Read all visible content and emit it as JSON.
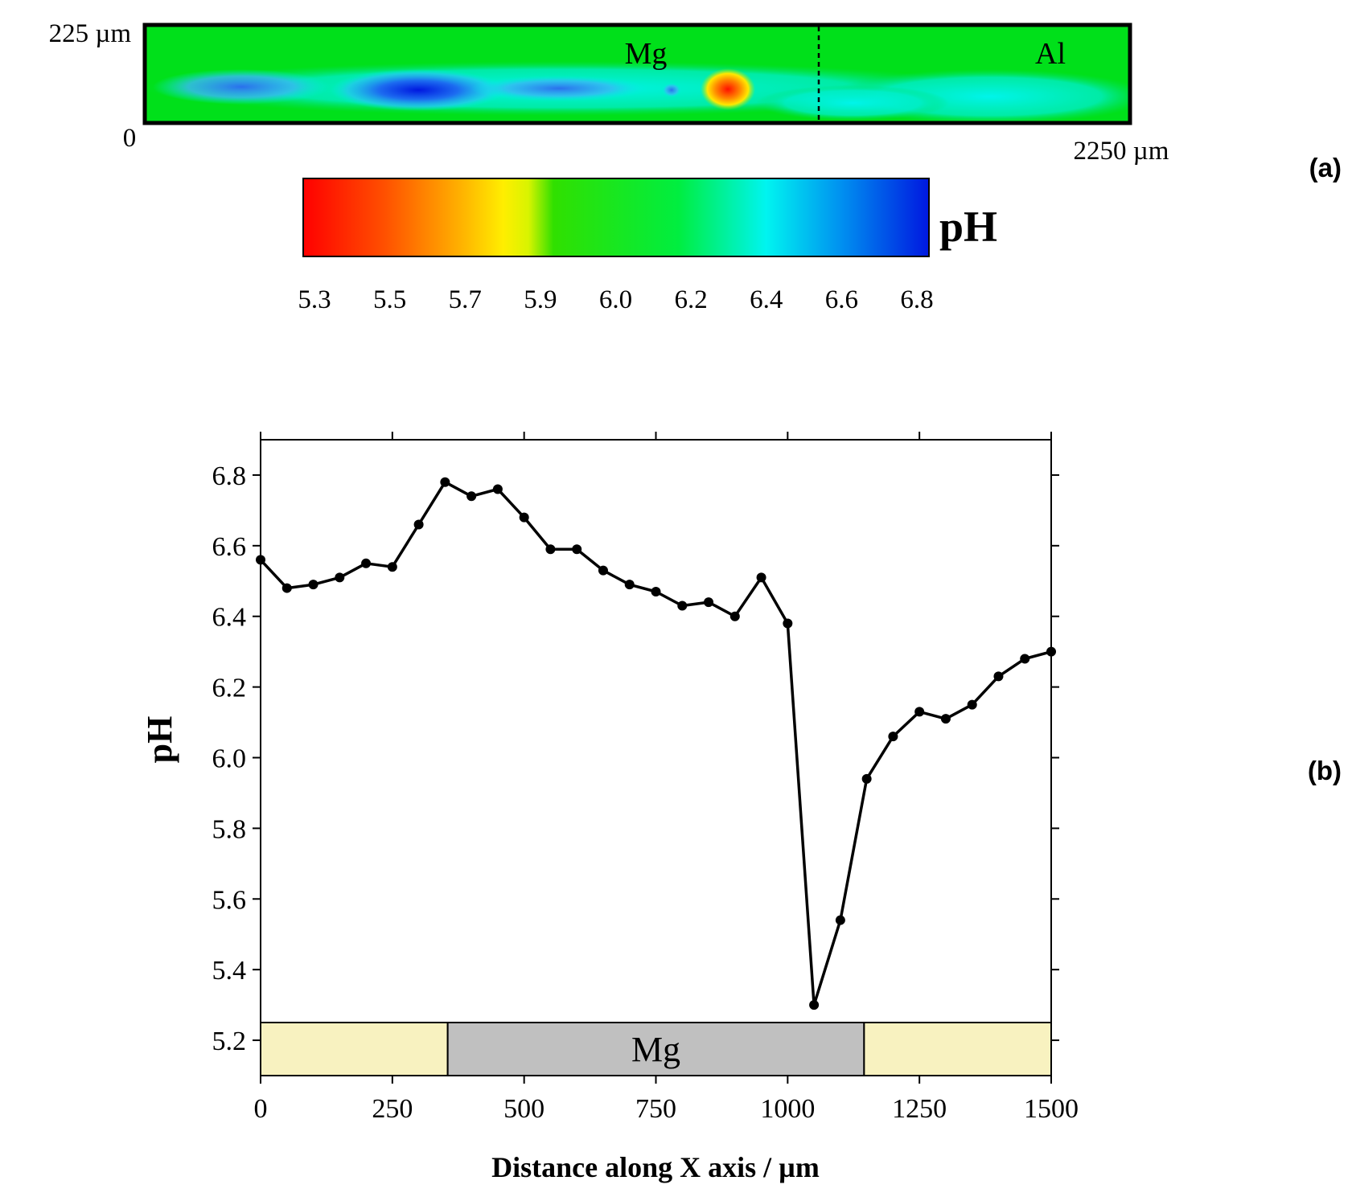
{
  "panel_a": {
    "map_corner_top_left": "225 µm",
    "map_corner_origin": "0",
    "map_corner_bottom_right": "2250 µm",
    "region_left_label": "Mg",
    "region_right_label": "Al",
    "colorbar_title": "pH",
    "colorbar_ticks": [
      "5.3",
      "5.5",
      "5.7",
      "5.9",
      "6.0",
      "6.2",
      "6.4",
      "6.6",
      "6.8"
    ],
    "panel_label": "(a)"
  },
  "panel_b": {
    "panel_label": "(b)",
    "band_label": "Mg"
  },
  "colors": {
    "line": "#000000",
    "band_mg": "#c0c0c0",
    "band_al": "#f8f2c0",
    "map_green": "#00e01a",
    "map_cyan": "#00f0e0",
    "map_blue": "#0010d8",
    "map_red": "#ff1000",
    "map_yellow": "#ffee00"
  },
  "chart_data": [
    {
      "type": "heatmap",
      "description_units": "pH map over 2250 µm × 225 µm area",
      "x_range": [
        0,
        2250
      ],
      "y_range": [
        0,
        225
      ],
      "value_range": [
        5.3,
        6.8
      ],
      "colorbar_label": "pH",
      "annotations": [
        "Mg",
        "Al"
      ]
    },
    {
      "type": "line",
      "title": "",
      "xlabel": "Distance along X axis / µm",
      "ylabel": "pH",
      "xlim": [
        0,
        1500
      ],
      "ylim": [
        5.1,
        6.9
      ],
      "xticks": [
        0,
        250,
        500,
        750,
        1000,
        1250,
        1500
      ],
      "yticks": [
        5.2,
        5.4,
        5.6,
        5.8,
        6.0,
        6.2,
        6.4,
        6.6,
        6.8
      ],
      "grid": false,
      "series": [
        {
          "x": [
            0,
            50,
            100,
            150,
            200,
            250,
            300,
            350,
            400,
            450,
            500,
            550,
            600,
            650,
            700,
            750,
            800,
            850,
            900,
            950,
            1000,
            1050,
            1100,
            1150,
            1200,
            1250,
            1300,
            1350,
            1400,
            1450,
            1500
          ],
          "y": [
            6.56,
            6.48,
            6.49,
            6.51,
            6.55,
            6.54,
            6.66,
            6.78,
            6.74,
            6.76,
            6.68,
            6.59,
            6.59,
            6.53,
            6.49,
            6.47,
            6.43,
            6.44,
            6.4,
            6.51,
            6.38,
            5.3,
            5.54,
            5.94,
            6.06,
            6.13,
            6.11,
            6.15,
            6.23,
            6.28,
            6.3
          ]
        }
      ],
      "substrate_regions": [
        {
          "label": "",
          "x_from": 0,
          "x_to": 355,
          "material": "Al"
        },
        {
          "label": "Mg",
          "x_from": 355,
          "x_to": 1145,
          "material": "Mg"
        },
        {
          "label": "",
          "x_from": 1145,
          "x_to": 1500,
          "material": "Al"
        }
      ]
    }
  ]
}
